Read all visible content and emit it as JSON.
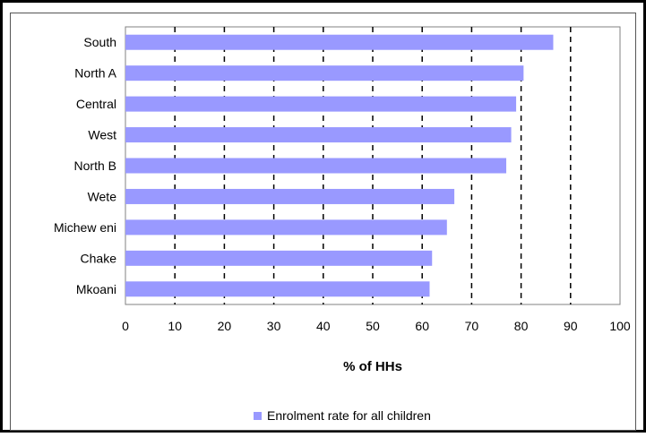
{
  "chart_data": {
    "type": "bar",
    "orientation": "horizontal",
    "title": "",
    "xlabel": "% of HHs",
    "ylabel": "",
    "xlim": [
      0,
      100
    ],
    "x_ticks": [
      0,
      10,
      20,
      30,
      40,
      50,
      60,
      70,
      80,
      90,
      100
    ],
    "grid": "vertical dashed lines at tick positions",
    "legend_placement": "bottom",
    "categories": [
      "South",
      "North A",
      "Central",
      "West",
      "North B",
      "Wete",
      "Michew eni",
      "Chake",
      "Mkoani"
    ],
    "series": [
      {
        "name": "Enrolment rate for all children",
        "color": "#9999ff",
        "values": [
          86.5,
          80.5,
          79,
          78,
          77,
          66.5,
          65,
          62,
          61.5
        ]
      }
    ]
  }
}
